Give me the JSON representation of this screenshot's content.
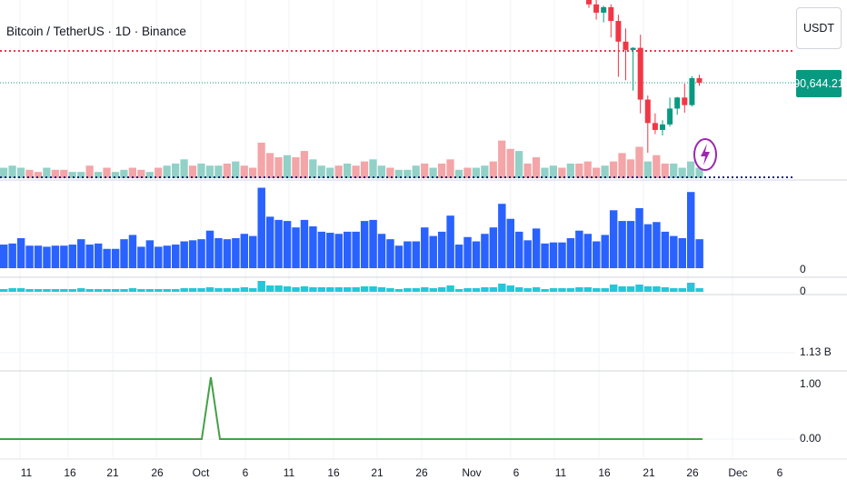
{
  "header": {
    "title": "Bitcoin / TetherUS · 1D · Binance"
  },
  "price_axis": {
    "currency": "USDT",
    "last_price": "90,644.21"
  },
  "indicator_axes": {
    "pane1_zero": "0",
    "pane2_zero": "0",
    "pane3_top": "1.13 B",
    "pane4_ticks": [
      "1.00",
      "0.00"
    ]
  },
  "colors": {
    "up": "#089981",
    "down": "#f23645",
    "vol_up": "#92d1c7",
    "vol_down": "#f4a5a7",
    "volume_bars": "#2962ff",
    "cyan_bars": "#26c6da",
    "signal_line": "#43a047",
    "resistance_line": "#f23645",
    "support_line": "#1a237e",
    "flash": "#9c27b0"
  },
  "icons": {
    "alert": "lightning-icon"
  },
  "chart_data": {
    "type": "candlestick",
    "time_axis": {
      "ticks": [
        "11",
        "16",
        "21",
        "26",
        "Oct",
        "6",
        "11",
        "16",
        "21",
        "26",
        "Nov",
        "6",
        "11",
        "16",
        "21",
        "26",
        "Dec",
        "6"
      ]
    },
    "candles_visible": [
      {
        "date": "Nov 13",
        "o": 104000,
        "h": 106000,
        "l": 101500,
        "c": 102000
      },
      {
        "date": "Nov 14",
        "o": 102000,
        "h": 102800,
        "l": 99800,
        "c": 100800
      },
      {
        "date": "Nov 15",
        "o": 100800,
        "h": 101800,
        "l": 99400,
        "c": 101600
      },
      {
        "date": "Nov 16",
        "o": 101600,
        "h": 102000,
        "l": 97200,
        "c": 99600
      },
      {
        "date": "Nov 17",
        "o": 99600,
        "h": 100500,
        "l": 91500,
        "c": 96600
      },
      {
        "date": "Nov 18",
        "o": 96600,
        "h": 98500,
        "l": 91000,
        "c": 95400
      },
      {
        "date": "Nov 19",
        "o": 95400,
        "h": 95800,
        "l": 89500,
        "c": 95700
      },
      {
        "date": "Nov 20",
        "o": 95700,
        "h": 97600,
        "l": 86200,
        "c": 88200
      },
      {
        "date": "Nov 21",
        "o": 88200,
        "h": 88800,
        "l": 80500,
        "c": 84800
      },
      {
        "date": "Nov 22",
        "o": 84800,
        "h": 86200,
        "l": 83200,
        "c": 83800
      },
      {
        "date": "Nov 23",
        "o": 83800,
        "h": 85200,
        "l": 83000,
        "c": 84600
      },
      {
        "date": "Nov 24",
        "o": 84600,
        "h": 88500,
        "l": 84300,
        "c": 86900
      },
      {
        "date": "Nov 25",
        "o": 86900,
        "h": 88600,
        "l": 86000,
        "c": 88500
      },
      {
        "date": "Nov 26",
        "o": 88500,
        "h": 90500,
        "l": 86300,
        "c": 87400
      },
      {
        "date": "Nov 27",
        "o": 87400,
        "h": 91600,
        "l": 87200,
        "c": 91300
      },
      {
        "date": "Nov 28",
        "o": 91300,
        "h": 91800,
        "l": 90200,
        "c": 90644
      }
    ],
    "volume_overlay": [
      5,
      6,
      5,
      4,
      3,
      5,
      4,
      4,
      3,
      3,
      6,
      3,
      5,
      3,
      4,
      5,
      4,
      3,
      5,
      6,
      7,
      9,
      6,
      7,
      6,
      6,
      7,
      8,
      6,
      5,
      17,
      12,
      10,
      11,
      10,
      13,
      9,
      6,
      5,
      6,
      7,
      6,
      8,
      9,
      6,
      5,
      4,
      4,
      6,
      7,
      5,
      7,
      9,
      4,
      5,
      5,
      6,
      8,
      18,
      14,
      13,
      7,
      10,
      5,
      6,
      5,
      7,
      7,
      8,
      5,
      6,
      8,
      12,
      9,
      15,
      8,
      11,
      7,
      7,
      5,
      8,
      5
    ],
    "volume_overlay_colors": [
      "u",
      "u",
      "u",
      "d",
      "d",
      "u",
      "d",
      "d",
      "u",
      "u",
      "d",
      "u",
      "d",
      "u",
      "u",
      "d",
      "d",
      "u",
      "d",
      "u",
      "u",
      "u",
      "d",
      "u",
      "u",
      "u",
      "d",
      "u",
      "d",
      "d",
      "d",
      "d",
      "d",
      "u",
      "d",
      "d",
      "u",
      "u",
      "u",
      "d",
      "u",
      "d",
      "d",
      "u",
      "u",
      "d",
      "u",
      "u",
      "u",
      "d",
      "u",
      "d",
      "d",
      "u",
      "d",
      "u",
      "u",
      "d",
      "d",
      "d",
      "u",
      "d",
      "d",
      "u",
      "u",
      "d",
      "u",
      "d",
      "d",
      "d",
      "u",
      "d",
      "d",
      "d",
      "d",
      "u",
      "d",
      "d",
      "u",
      "u",
      "u",
      "u"
    ],
    "volume_bars": [
      22,
      23,
      28,
      21,
      21,
      20,
      21,
      21,
      22,
      27,
      22,
      23,
      18,
      18,
      27,
      31,
      20,
      26,
      20,
      21,
      22,
      25,
      26,
      27,
      35,
      28,
      27,
      28,
      32,
      30,
      75,
      48,
      45,
      44,
      38,
      45,
      39,
      34,
      33,
      32,
      34,
      34,
      44,
      45,
      32,
      27,
      21,
      25,
      25,
      38,
      30,
      34,
      49,
      22,
      29,
      25,
      32,
      38,
      60,
      46,
      34,
      26,
      37,
      23,
      24,
      24,
      28,
      35,
      32,
      25,
      31,
      54,
      44,
      44,
      56,
      41,
      43,
      34,
      30,
      28,
      71,
      27
    ],
    "cyan_bars": [
      3,
      4,
      4,
      3,
      3,
      3,
      3,
      3,
      3,
      4,
      3,
      3,
      3,
      3,
      3,
      4,
      3,
      3,
      3,
      3,
      3,
      4,
      4,
      4,
      5,
      4,
      4,
      4,
      5,
      4,
      12,
      7,
      7,
      6,
      5,
      6,
      5,
      5,
      5,
      5,
      5,
      5,
      6,
      6,
      5,
      4,
      3,
      4,
      4,
      5,
      4,
      5,
      7,
      3,
      4,
      4,
      5,
      5,
      9,
      7,
      5,
      4,
      5,
      3,
      4,
      4,
      4,
      5,
      5,
      4,
      4,
      8,
      6,
      6,
      8,
      6,
      6,
      5,
      4,
      4,
      10,
      4
    ],
    "signal_line": {
      "baseline": 0,
      "spike": {
        "date": "Oct 3",
        "value": 1
      }
    }
  }
}
